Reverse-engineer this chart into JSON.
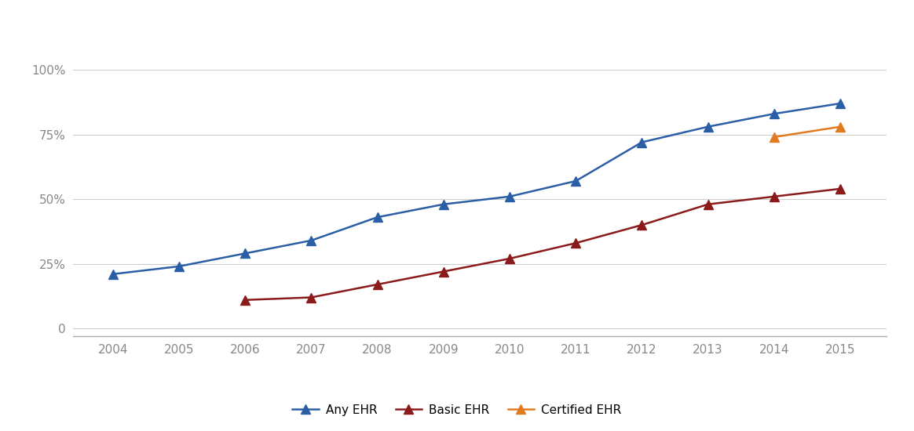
{
  "years": [
    2004,
    2005,
    2006,
    2007,
    2008,
    2009,
    2010,
    2011,
    2012,
    2013,
    2014,
    2015
  ],
  "any_ehr": [
    0.21,
    0.24,
    0.29,
    0.34,
    0.43,
    0.48,
    0.51,
    0.57,
    0.72,
    0.78,
    0.83,
    0.87
  ],
  "basic_ehr": [
    null,
    null,
    0.11,
    0.12,
    0.17,
    0.22,
    0.27,
    0.33,
    0.4,
    0.48,
    0.51,
    0.54
  ],
  "certified_ehr": [
    null,
    null,
    null,
    null,
    null,
    null,
    null,
    null,
    null,
    null,
    0.74,
    0.78
  ],
  "any_ehr_color": "#2b5fa5",
  "basic_ehr_color": "#8b1a1a",
  "certified_ehr_color": "#e07b20",
  "line_width": 1.8,
  "marker": "^",
  "marker_size": 9,
  "yticks": [
    0.0,
    0.25,
    0.5,
    0.75,
    1.0
  ],
  "ytick_labels": [
    "0",
    "25%",
    "50%",
    "75%",
    "100%"
  ],
  "background_color": "#ffffff",
  "grid_color": "#cccccc",
  "legend_labels": [
    "Any EHR",
    "Basic EHR",
    "Certified EHR"
  ],
  "legend_fontsize": 11,
  "tick_fontsize": 11,
  "tick_color": "#888888"
}
